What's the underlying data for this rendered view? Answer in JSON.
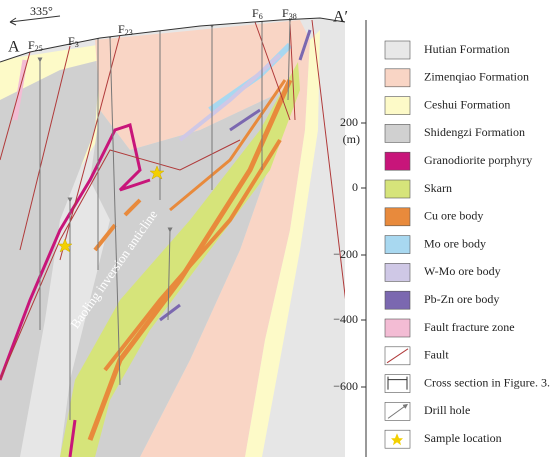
{
  "section": {
    "azimuth": "335°",
    "start_label": "A",
    "end_label": "A′",
    "faults": [
      {
        "letter": "F",
        "index": "25"
      },
      {
        "letter": "F",
        "index": "3"
      },
      {
        "letter": "F",
        "index": "23"
      },
      {
        "letter": "F",
        "index": "6"
      },
      {
        "letter": "F",
        "index": "38"
      }
    ],
    "anticline": "Baoling inversion anticline",
    "elevation": {
      "unit": "(m)",
      "labels": [
        "200",
        "0",
        "−200",
        "−400",
        "−600"
      ]
    }
  },
  "legend": [
    "Hutian Formation",
    "Zimenqiao Formation",
    "Ceshui Formation",
    "Shidengzi Formation",
    "Granodiorite porphyry",
    "Skarn",
    "Cu ore body",
    "Mo ore body",
    "W-Mo ore body",
    "Pb-Zn ore body",
    "Fault fracture zone",
    "Fault",
    "Cross section in Figure. 3.",
    "Drill hole",
    "Sample location"
  ]
}
